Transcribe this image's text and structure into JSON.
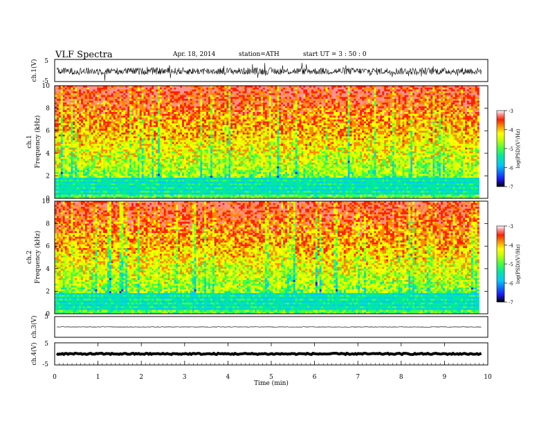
{
  "header": {
    "title": "VLF  Spectra",
    "date": "Apr. 18, 2014",
    "station": "station=ATH",
    "start": "start  UT =   3  : 50 : 0"
  },
  "chart_data": [
    {
      "type": "line",
      "panel": "ch1-waveform",
      "ylabel": "ch.1(V)",
      "ylim": [
        -5,
        5
      ],
      "yticks": [
        "5",
        "-5"
      ],
      "xlim": [
        0,
        10
      ],
      "description_values": {
        "mean": -0.3,
        "amplitude": 1.6
      }
    },
    {
      "type": "heatmap",
      "panel": "ch1-spectrogram",
      "ylabel": "ch.1\nFrequency  (kHz)",
      "ylabel_lines": [
        "ch.1",
        "Frequency  (kHz)"
      ],
      "ylim": [
        0,
        10
      ],
      "yticks": [
        "0",
        "2",
        "4",
        "6",
        "8",
        "10"
      ],
      "xlim": [
        0,
        9.8
      ],
      "colorbar": {
        "label": "log(PSD)(V²/Hz)",
        "range": [
          -7,
          -3
        ],
        "ticks": [
          "-3",
          "-4",
          "-5",
          "-6",
          "-7"
        ]
      }
    },
    {
      "type": "heatmap",
      "panel": "ch2-spectrogram",
      "ylabel": "ch.2\nFrequency  (kHz)",
      "ylabel_lines": [
        "ch.2",
        "Frequency  (kHz)"
      ],
      "ylim": [
        0,
        10
      ],
      "yticks": [
        "0",
        "2",
        "4",
        "6",
        "8",
        "10"
      ],
      "xlim": [
        0,
        9.8
      ],
      "colorbar": {
        "label": "log(PSD)(V²/Hz)",
        "range": [
          -7,
          -3
        ],
        "ticks": [
          "-3",
          "-4",
          "-5",
          "-6",
          "-7"
        ]
      }
    },
    {
      "type": "line",
      "panel": "ch3-waveform",
      "ylabel": "ch.3(V)",
      "ylim": [
        -5,
        5
      ],
      "yticks": [
        "5",
        "-5"
      ],
      "xlim": [
        0,
        10
      ],
      "description_values": {
        "mean": 0.0,
        "amplitude": 0.1
      }
    },
    {
      "type": "line",
      "panel": "ch4-waveform",
      "ylabel": "ch.4(V)",
      "ylim": [
        -5,
        5
      ],
      "yticks": [
        "5",
        "-5"
      ],
      "xlim": [
        0,
        10
      ],
      "xlabel": "Time  (min)",
      "xticks": [
        "0",
        "1",
        "2",
        "3",
        "4",
        "5",
        "6",
        "7",
        "8",
        "9",
        "10"
      ],
      "description_values": {
        "mean": 0.0,
        "amplitude": 0.3
      }
    }
  ],
  "colors": {
    "colormap": [
      "#000000",
      "#1a1aff",
      "#00c8ff",
      "#00e8a0",
      "#40ff40",
      "#c8ff00",
      "#ffff00",
      "#ff8800",
      "#ff2000",
      "#ff9090",
      "#ffffff"
    ],
    "axis": "#000000",
    "trace": "#000000"
  }
}
